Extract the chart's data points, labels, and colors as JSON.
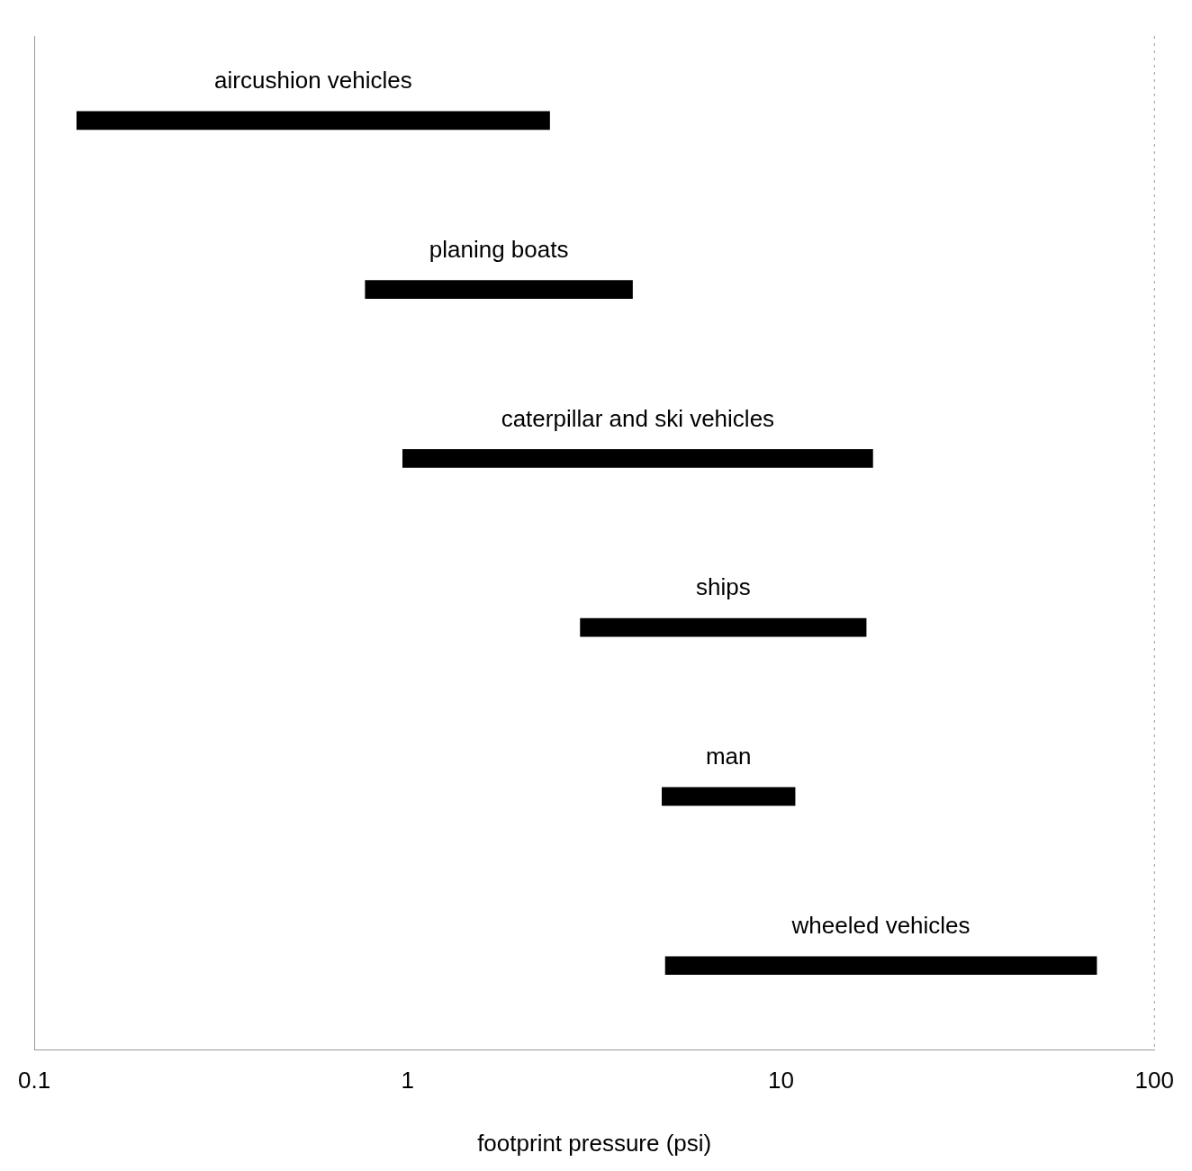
{
  "chart_data": {
    "type": "bar",
    "orientation": "horizontal",
    "categories": [
      "aircushion vehicles",
      "planing boats",
      "caterpillar and ski vehicles",
      "ships",
      "man",
      "wheeled vehicles"
    ],
    "base": [
      0.13,
      0.77,
      0.97,
      2.9,
      4.8,
      4.9
    ],
    "values": [
      2.27,
      3.23,
      16.63,
      14.0,
      6.1,
      65.1
    ],
    "color": "#000000",
    "xlabel": "footprint pressure (psi)",
    "log": "x",
    "xlim": [
      0.1,
      100
    ],
    "xticks": [
      0.1,
      1,
      10,
      100
    ],
    "tick_labels": "x",
    "grid": false,
    "legend": false
  }
}
